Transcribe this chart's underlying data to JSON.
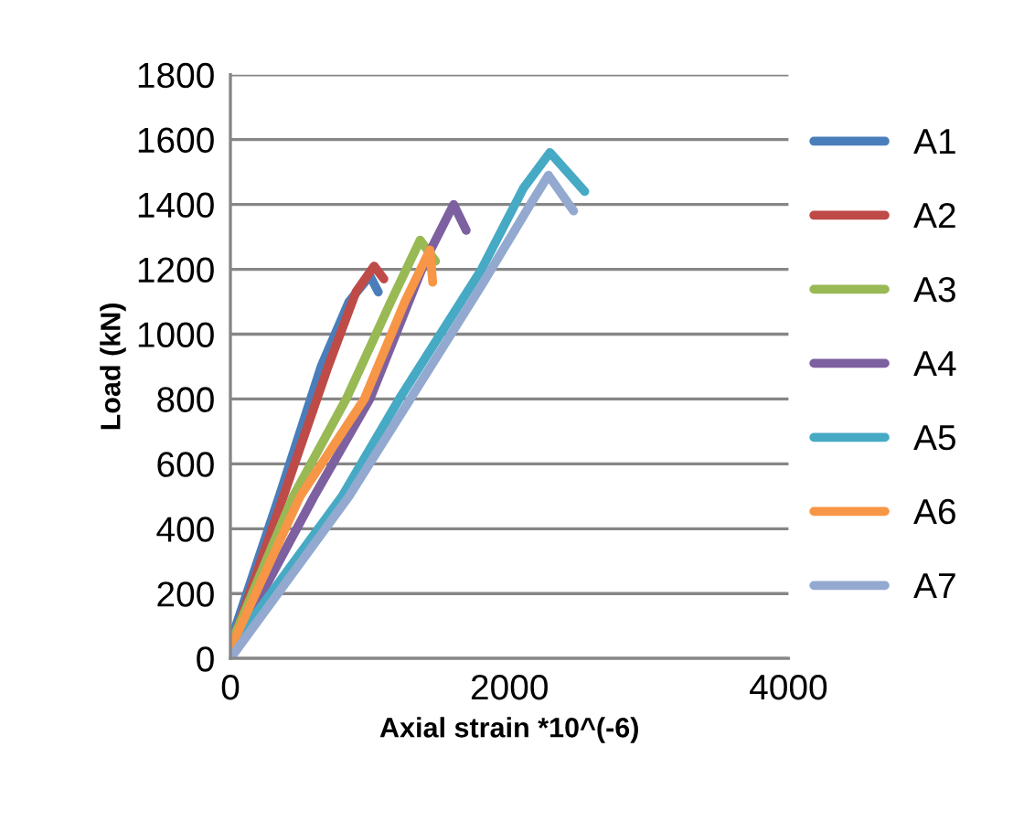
{
  "chart_data": {
    "type": "line",
    "xlabel": "Axial strain *10^(-6)",
    "ylabel": "Load (kN)",
    "xlim": [
      0,
      4000
    ],
    "xticks": [
      0,
      2000,
      4000
    ],
    "ylim": [
      0,
      1800
    ],
    "yticks": [
      0,
      200,
      400,
      600,
      800,
      1000,
      1200,
      1400,
      1600,
      1800
    ],
    "grid": "y",
    "legend": "right",
    "marker": "none",
    "line_style": "solid",
    "series": [
      {
        "name": "A1",
        "color": "#4a7ebb",
        "x": [
          0,
          350,
          650,
          850,
          1000,
          1060
        ],
        "values": [
          50,
          500,
          900,
          1100,
          1180,
          1130
        ]
      },
      {
        "name": "A2",
        "color": "#be4b48",
        "x": [
          0,
          380,
          700,
          900,
          1030,
          1100
        ],
        "values": [
          30,
          500,
          900,
          1130,
          1210,
          1170
        ]
      },
      {
        "name": "A3",
        "color": "#98b954",
        "x": [
          0,
          450,
          830,
          1150,
          1360,
          1470
        ],
        "values": [
          40,
          500,
          800,
          1100,
          1290,
          1225
        ]
      },
      {
        "name": "A4",
        "color": "#7d60a0",
        "x": [
          0,
          600,
          1000,
          1400,
          1600,
          1690
        ],
        "values": [
          20,
          500,
          800,
          1230,
          1400,
          1320
        ]
      },
      {
        "name": "A5",
        "color": "#46aac5",
        "x": [
          0,
          800,
          1210,
          1800,
          2100,
          2290,
          2540
        ],
        "values": [
          30,
          500,
          800,
          1200,
          1450,
          1560,
          1440
        ]
      },
      {
        "name": "A6",
        "color": "#f79646",
        "x": [
          0,
          500,
          960,
          1250,
          1430,
          1450
        ],
        "values": [
          30,
          500,
          800,
          1100,
          1260,
          1160
        ]
      },
      {
        "name": "A7",
        "color": "#93a9cf",
        "x": [
          0,
          850,
          1290,
          1800,
          2150,
          2280,
          2460
        ],
        "values": [
          0,
          500,
          800,
          1150,
          1400,
          1490,
          1380
        ]
      }
    ]
  }
}
